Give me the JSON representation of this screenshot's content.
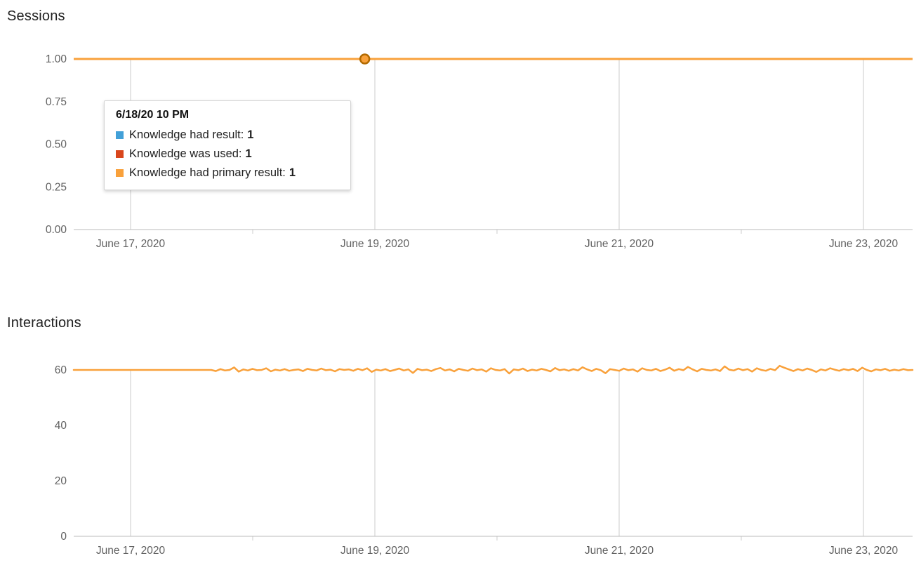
{
  "tooltip": {
    "title": "6/18/20 10 PM",
    "rows": [
      {
        "label": "Knowledge had result:",
        "value": "1",
        "color": "#42A0D8"
      },
      {
        "label": "Knowledge was used:",
        "value": "1",
        "color": "#D9461C"
      },
      {
        "label": "Knowledge had primary result:",
        "value": "1",
        "color": "#F9A13B"
      }
    ]
  },
  "chart_data": [
    {
      "type": "line",
      "title": "Sessions",
      "x_tick_labels": [
        "June 17, 2020",
        "June 19, 2020",
        "June 21, 2020",
        "June 23, 2020"
      ],
      "y_ticks": [
        0,
        0.25,
        0.5,
        0.75,
        1
      ],
      "y_tick_labels": [
        "0.00",
        "0.25",
        "0.50",
        "0.75",
        "1.00"
      ],
      "ylim": [
        0,
        1
      ],
      "grid": "vertical",
      "series": [
        {
          "name": "Knowledge had result",
          "color": "#42A0D8",
          "value": 1
        },
        {
          "name": "Knowledge was used",
          "color": "#D9461C",
          "value": 1
        },
        {
          "name": "Knowledge had primary result",
          "color": "#F9A13B",
          "value": 1
        }
      ],
      "highlight": {
        "x_frac": 0.347,
        "value": 1,
        "fill": "#F9A13B",
        "ring": "#B26A00",
        "label": "6/18/20 10 PM"
      }
    },
    {
      "type": "line",
      "title": "Interactions",
      "x_tick_labels": [
        "June 17, 2020",
        "June 19, 2020",
        "June 21, 2020",
        "June 23, 2020"
      ],
      "y_ticks": [
        0,
        20,
        40,
        60
      ],
      "y_tick_labels": [
        "0",
        "20",
        "40",
        "60"
      ],
      "ylim": [
        0,
        60
      ],
      "grid": "vertical",
      "series": [
        {
          "name": "Interactions",
          "color": "#F9A13B",
          "values": [
            60,
            60,
            60,
            60,
            60,
            60,
            60,
            60,
            60,
            60,
            60,
            60,
            60,
            60,
            60,
            60,
            60,
            60,
            60,
            60,
            60,
            60,
            60,
            60,
            60,
            60,
            60,
            60,
            60,
            60,
            60,
            59.6,
            60.3,
            59.8,
            60,
            60.9,
            59.4,
            60.2,
            59.8,
            60.4,
            59.9,
            60,
            60.6,
            59.5,
            60.1,
            59.8,
            60.3,
            59.7,
            60,
            60.2,
            59.6,
            60.4,
            60,
            59.8,
            60.5,
            59.9,
            60.1,
            59.5,
            60.3,
            60,
            60.2,
            59.7,
            60.4,
            59.9,
            60.6,
            59.3,
            60.1,
            59.8,
            60.3,
            59.6,
            60,
            60.5,
            59.8,
            60.2,
            58.9,
            60.4,
            59.9,
            60.1,
            59.6,
            60.3,
            60.7,
            59.8,
            60.2,
            59.5,
            60.4,
            60,
            59.7,
            60.5,
            59.9,
            60.2,
            59.4,
            60.6,
            60,
            59.8,
            60.3,
            58.7,
            60.2,
            59.9,
            60.5,
            59.6,
            60.1,
            59.8,
            60.4,
            60,
            59.5,
            60.7,
            59.9,
            60.2,
            59.7,
            60.3,
            59.8,
            61,
            60.2,
            59.6,
            60.4,
            59.9,
            58.8,
            60.3,
            60,
            59.7,
            60.5,
            59.9,
            60.2,
            59.4,
            60.6,
            60,
            59.8,
            60.4,
            59.6,
            60.1,
            60.8,
            59.7,
            60.3,
            59.9,
            61.1,
            60.2,
            59.5,
            60.4,
            60,
            59.8,
            60.2,
            59.6,
            61.3,
            60.1,
            59.8,
            60.5,
            59.9,
            60.3,
            59.4,
            60.6,
            60,
            59.7,
            60.4,
            59.9,
            61.5,
            60.8,
            60.2,
            59.6,
            60.3,
            59.8,
            60.5,
            60,
            59.3,
            60.2,
            59.8,
            60.6,
            60.1,
            59.7,
            60.3,
            59.9,
            60.4,
            59.6,
            60.8,
            60,
            59.5,
            60.2,
            59.9,
            60.4,
            59.7,
            60.1,
            59.8,
            60.3,
            59.9,
            60
          ]
        }
      ]
    }
  ]
}
